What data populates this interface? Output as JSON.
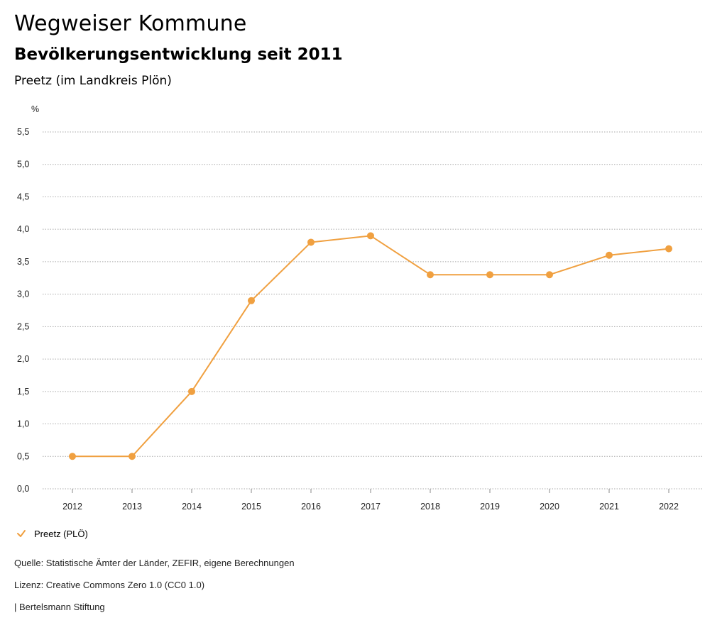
{
  "header": {
    "title": "Wegweiser Kommune",
    "subtitle": "Bevölkerungsentwicklung seit 2011",
    "region": "Preetz (im Landkreis Plön)"
  },
  "legend": {
    "label": "Preetz (PLÖ)",
    "icon": "check-icon"
  },
  "footer": {
    "source": "Quelle: Statistische Ämter der Länder, ZEFIR, eigene Berechnungen",
    "license": "Lizenz: Creative Commons Zero 1.0 (CC0 1.0)",
    "publisher": "| Bertelsmann Stiftung"
  },
  "colors": {
    "series": "#f0a040",
    "grid": "#aaaaaa"
  },
  "chart_data": {
    "type": "line",
    "title": "Bevölkerungsentwicklung seit 2011",
    "xlabel": "",
    "ylabel": "%",
    "ylim": [
      0,
      5.5
    ],
    "yticks": [
      "0,0",
      "0,5",
      "1,0",
      "1,5",
      "2,0",
      "2,5",
      "3,0",
      "3,5",
      "4,0",
      "4,5",
      "5,0",
      "5,5"
    ],
    "grid": true,
    "legend_position": "bottom-left",
    "x": [
      "2012",
      "2013",
      "2014",
      "2015",
      "2016",
      "2017",
      "2018",
      "2019",
      "2020",
      "2021",
      "2022"
    ],
    "series": [
      {
        "name": "Preetz (PLÖ)",
        "values": [
          0.5,
          0.5,
          1.5,
          2.9,
          3.8,
          3.9,
          3.3,
          3.3,
          3.3,
          3.6,
          3.7
        ]
      }
    ]
  }
}
